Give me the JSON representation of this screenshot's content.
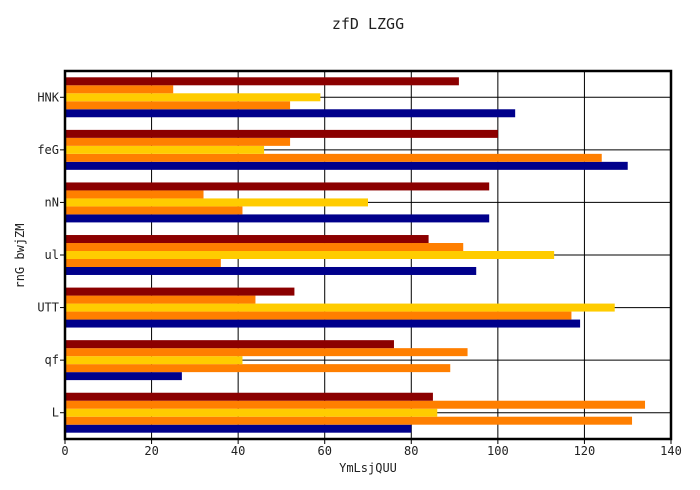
{
  "chart_data": {
    "type": "bar",
    "orientation": "horizontal",
    "title": "zfD LZGG",
    "xlabel": "YmLsjQUU",
    "ylabel": "rnG bwjZM",
    "xlim": [
      0,
      140
    ],
    "xticks": [
      0,
      20,
      40,
      60,
      80,
      100,
      120,
      140
    ],
    "grid": true,
    "legend": "none",
    "categories": [
      "L",
      "qf",
      "UTT",
      "ul",
      "nN",
      "feG",
      "HNK"
    ],
    "series": [
      {
        "color": "#00008b",
        "values": [
          80,
          27,
          119,
          95,
          98,
          130,
          104
        ]
      },
      {
        "color": "#ff7f00",
        "values": [
          131,
          89,
          117,
          36,
          41,
          124,
          52
        ]
      },
      {
        "color": "#ffcc00",
        "values": [
          86,
          41,
          127,
          113,
          70,
          46,
          59
        ]
      },
      {
        "color": "#ff7f00",
        "values": [
          134,
          93,
          44,
          92,
          32,
          52,
          25
        ]
      },
      {
        "color": "#8b0000",
        "values": [
          85,
          76,
          53,
          84,
          98,
          100,
          91
        ]
      }
    ]
  }
}
